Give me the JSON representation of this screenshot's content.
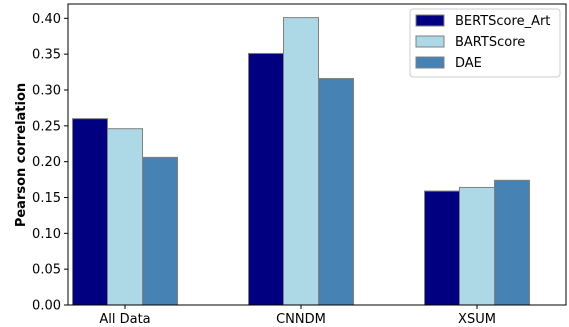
{
  "chart_data": {
    "type": "bar",
    "title": "",
    "xlabel": "",
    "ylabel": "Pearson correlation",
    "categories": [
      "All Data",
      "CNNDM",
      "XSUM"
    ],
    "series": [
      {
        "name": "BERTScore_Art",
        "color": "#000080",
        "values": [
          0.26,
          0.351,
          0.159
        ]
      },
      {
        "name": "BARTScore",
        "color": "#add8e6",
        "values": [
          0.246,
          0.401,
          0.164
        ]
      },
      {
        "name": "DAE",
        "color": "#4682b4",
        "values": [
          0.206,
          0.316,
          0.174
        ]
      }
    ],
    "ylim": [
      0,
      0.42
    ],
    "yticks": [
      "0.00",
      "0.05",
      "0.10",
      "0.15",
      "0.20",
      "0.25",
      "0.30",
      "0.35",
      "0.40"
    ],
    "grid": false,
    "legend_position": "top-right"
  }
}
